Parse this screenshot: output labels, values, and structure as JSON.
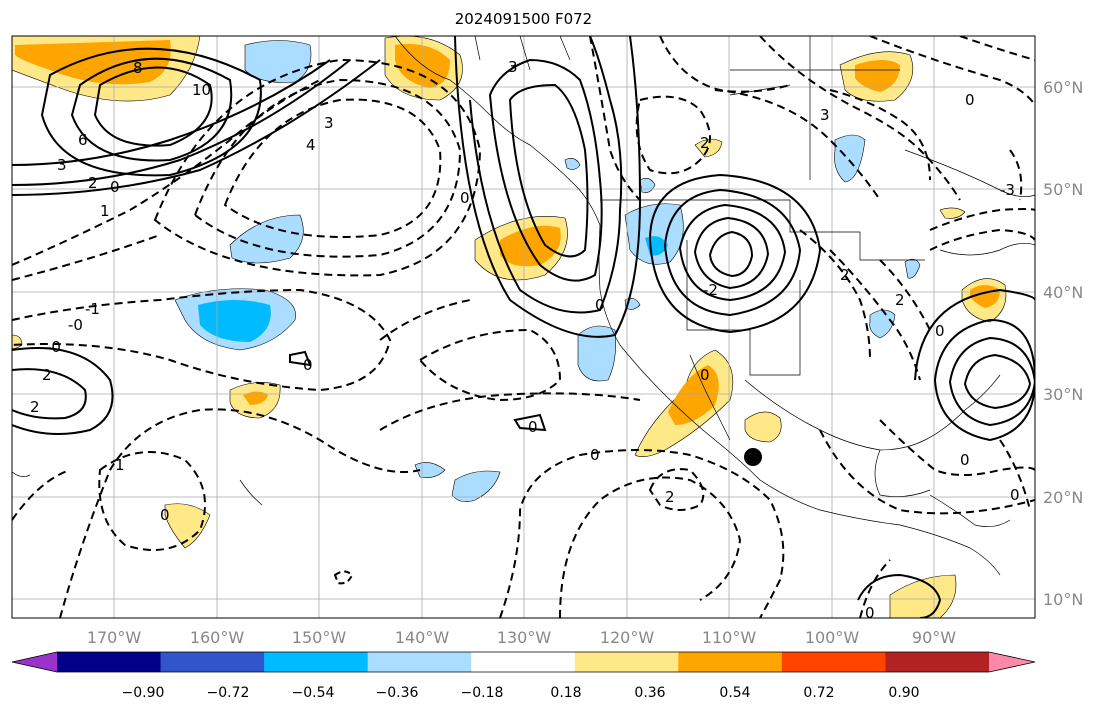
{
  "title": "2024091500 F072",
  "map": {
    "lon_labels": [
      "170°W",
      "160°W",
      "150°W",
      "140°W",
      "130°W",
      "120°W",
      "110°W",
      "100°W",
      "90°W"
    ],
    "lat_labels": [
      "60°N",
      "50°N",
      "40°N",
      "30°N",
      "20°N",
      "10°N"
    ],
    "contour_labels": [
      "8",
      "10",
      "6",
      "3",
      "2",
      "0",
      "1",
      "4",
      "3",
      "0",
      "3",
      "-1",
      "-0",
      "-0",
      "2",
      "2",
      "1",
      "0",
      "0",
      "0",
      "0",
      "2",
      "0",
      "-2",
      "3",
      "-3",
      "0",
      "2",
      "2",
      "0",
      "0",
      "0",
      "0",
      "2",
      "0"
    ],
    "marker": "station-dot"
  },
  "colorbar": {
    "ticks": [
      "−0.90",
      "−0.72",
      "−0.54",
      "−0.36",
      "−0.18",
      "0.18",
      "0.36",
      "0.54",
      "0.72",
      "0.90"
    ],
    "colors": [
      "#9933cc",
      "#000088",
      "#3355cc",
      "#00bbff",
      "#aaddff",
      "#ffffff",
      "#ffe888",
      "#ffa500",
      "#ff4400",
      "#b22222",
      "#ff88aa"
    ]
  }
}
